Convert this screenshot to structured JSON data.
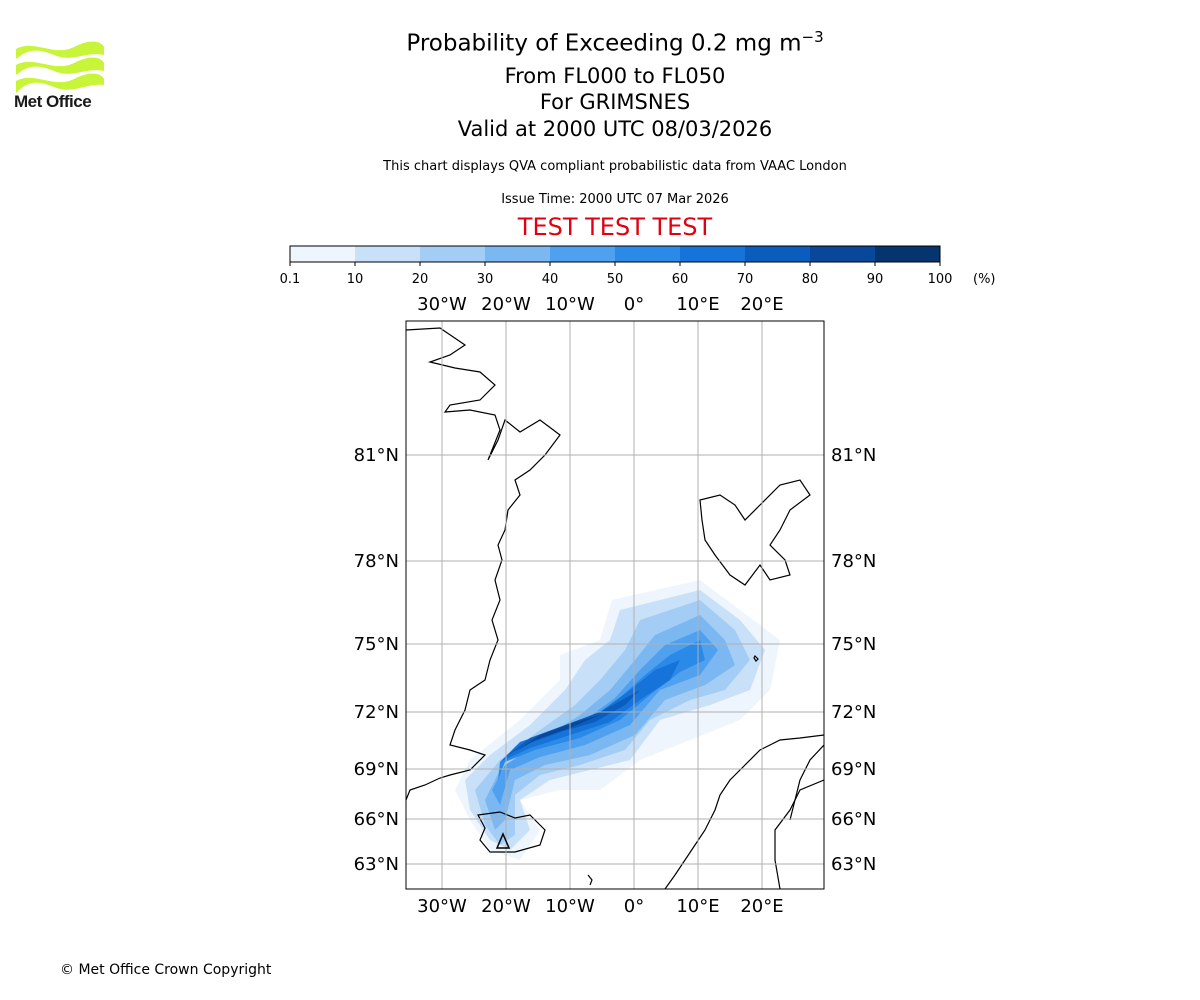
{
  "logo": {
    "text": "Met Office",
    "name": "met-office-logo"
  },
  "title": {
    "line1": "Probability of Exceeding 0.2 mg m",
    "line1_sup": "−3",
    "line2": "From FL000 to FL050",
    "line3": "For GRIMSNES",
    "line4": "Valid at 2000 UTC 08/03/2026"
  },
  "subtitle": "This chart displays QVA compliant probabilistic data from VAAC London",
  "issue_time": "Issue Time: 2000 UTC 07 Mar 2026",
  "test_banner": "TEST TEST TEST",
  "test_color": "#e0000f",
  "copyright": "© Met Office Crown Copyright",
  "colorbar": {
    "ticks": [
      "0.1",
      "10",
      "20",
      "30",
      "40",
      "50",
      "60",
      "70",
      "80",
      "90",
      "100"
    ],
    "unit": "(%)",
    "colors": [
      "#eef5fd",
      "#c9e1f8",
      "#a3cdf5",
      "#7bb8f2",
      "#4fa0ee",
      "#2b8ae8",
      "#1573d9",
      "#0b5dbd",
      "#08479a",
      "#06346f"
    ]
  },
  "map": {
    "lon_labels": [
      "30°W",
      "20°W",
      "10°W",
      "0°",
      "10°E",
      "20°E"
    ],
    "lat_labels": [
      "81°N",
      "78°N",
      "75°N",
      "72°N",
      "69°N",
      "66°N",
      "63°N"
    ]
  }
}
